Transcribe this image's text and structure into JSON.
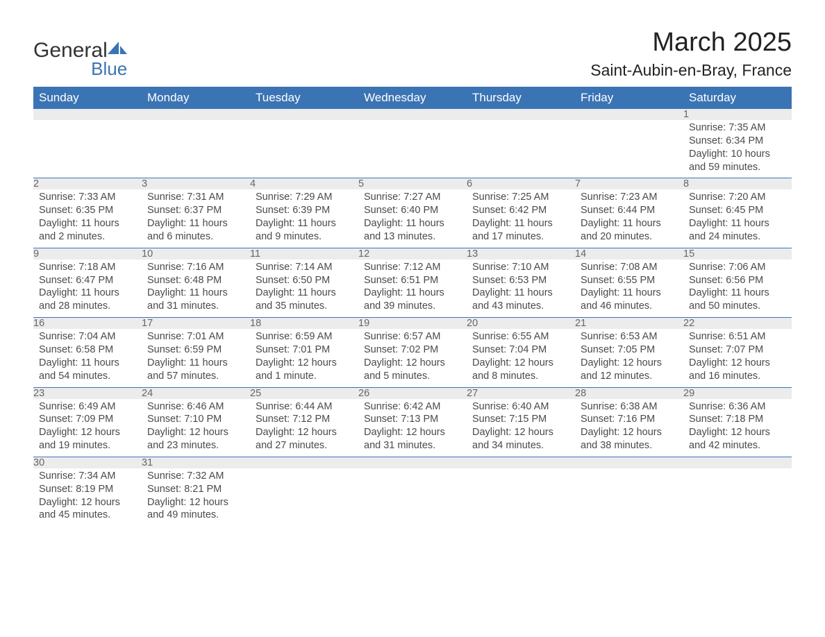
{
  "logo": {
    "text1": "General",
    "text2": "Blue"
  },
  "title": "March 2025",
  "location": "Saint-Aubin-en-Bray, France",
  "colors": {
    "header_bg": "#3b74b4",
    "header_text": "#ffffff",
    "daynum_bg": "#ececec",
    "border": "#3b74b4",
    "text": "#4a4a4a",
    "title": "#222222",
    "background": "#ffffff"
  },
  "weekdays": [
    "Sunday",
    "Monday",
    "Tuesday",
    "Wednesday",
    "Thursday",
    "Friday",
    "Saturday"
  ],
  "weeks": [
    {
      "nums": [
        "",
        "",
        "",
        "",
        "",
        "",
        "1"
      ],
      "cells": [
        "",
        "",
        "",
        "",
        "",
        "",
        "Sunrise: 7:35 AM\nSunset: 6:34 PM\nDaylight: 10 hours and 59 minutes."
      ]
    },
    {
      "nums": [
        "2",
        "3",
        "4",
        "5",
        "6",
        "7",
        "8"
      ],
      "cells": [
        "Sunrise: 7:33 AM\nSunset: 6:35 PM\nDaylight: 11 hours and 2 minutes.",
        "Sunrise: 7:31 AM\nSunset: 6:37 PM\nDaylight: 11 hours and 6 minutes.",
        "Sunrise: 7:29 AM\nSunset: 6:39 PM\nDaylight: 11 hours and 9 minutes.",
        "Sunrise: 7:27 AM\nSunset: 6:40 PM\nDaylight: 11 hours and 13 minutes.",
        "Sunrise: 7:25 AM\nSunset: 6:42 PM\nDaylight: 11 hours and 17 minutes.",
        "Sunrise: 7:23 AM\nSunset: 6:44 PM\nDaylight: 11 hours and 20 minutes.",
        "Sunrise: 7:20 AM\nSunset: 6:45 PM\nDaylight: 11 hours and 24 minutes."
      ]
    },
    {
      "nums": [
        "9",
        "10",
        "11",
        "12",
        "13",
        "14",
        "15"
      ],
      "cells": [
        "Sunrise: 7:18 AM\nSunset: 6:47 PM\nDaylight: 11 hours and 28 minutes.",
        "Sunrise: 7:16 AM\nSunset: 6:48 PM\nDaylight: 11 hours and 31 minutes.",
        "Sunrise: 7:14 AM\nSunset: 6:50 PM\nDaylight: 11 hours and 35 minutes.",
        "Sunrise: 7:12 AM\nSunset: 6:51 PM\nDaylight: 11 hours and 39 minutes.",
        "Sunrise: 7:10 AM\nSunset: 6:53 PM\nDaylight: 11 hours and 43 minutes.",
        "Sunrise: 7:08 AM\nSunset: 6:55 PM\nDaylight: 11 hours and 46 minutes.",
        "Sunrise: 7:06 AM\nSunset: 6:56 PM\nDaylight: 11 hours and 50 minutes."
      ]
    },
    {
      "nums": [
        "16",
        "17",
        "18",
        "19",
        "20",
        "21",
        "22"
      ],
      "cells": [
        "Sunrise: 7:04 AM\nSunset: 6:58 PM\nDaylight: 11 hours and 54 minutes.",
        "Sunrise: 7:01 AM\nSunset: 6:59 PM\nDaylight: 11 hours and 57 minutes.",
        "Sunrise: 6:59 AM\nSunset: 7:01 PM\nDaylight: 12 hours and 1 minute.",
        "Sunrise: 6:57 AM\nSunset: 7:02 PM\nDaylight: 12 hours and 5 minutes.",
        "Sunrise: 6:55 AM\nSunset: 7:04 PM\nDaylight: 12 hours and 8 minutes.",
        "Sunrise: 6:53 AM\nSunset: 7:05 PM\nDaylight: 12 hours and 12 minutes.",
        "Sunrise: 6:51 AM\nSunset: 7:07 PM\nDaylight: 12 hours and 16 minutes."
      ]
    },
    {
      "nums": [
        "23",
        "24",
        "25",
        "26",
        "27",
        "28",
        "29"
      ],
      "cells": [
        "Sunrise: 6:49 AM\nSunset: 7:09 PM\nDaylight: 12 hours and 19 minutes.",
        "Sunrise: 6:46 AM\nSunset: 7:10 PM\nDaylight: 12 hours and 23 minutes.",
        "Sunrise: 6:44 AM\nSunset: 7:12 PM\nDaylight: 12 hours and 27 minutes.",
        "Sunrise: 6:42 AM\nSunset: 7:13 PM\nDaylight: 12 hours and 31 minutes.",
        "Sunrise: 6:40 AM\nSunset: 7:15 PM\nDaylight: 12 hours and 34 minutes.",
        "Sunrise: 6:38 AM\nSunset: 7:16 PM\nDaylight: 12 hours and 38 minutes.",
        "Sunrise: 6:36 AM\nSunset: 7:18 PM\nDaylight: 12 hours and 42 minutes."
      ]
    },
    {
      "nums": [
        "30",
        "31",
        "",
        "",
        "",
        "",
        ""
      ],
      "cells": [
        "Sunrise: 7:34 AM\nSunset: 8:19 PM\nDaylight: 12 hours and 45 minutes.",
        "Sunrise: 7:32 AM\nSunset: 8:21 PM\nDaylight: 12 hours and 49 minutes.",
        "",
        "",
        "",
        "",
        ""
      ]
    }
  ]
}
